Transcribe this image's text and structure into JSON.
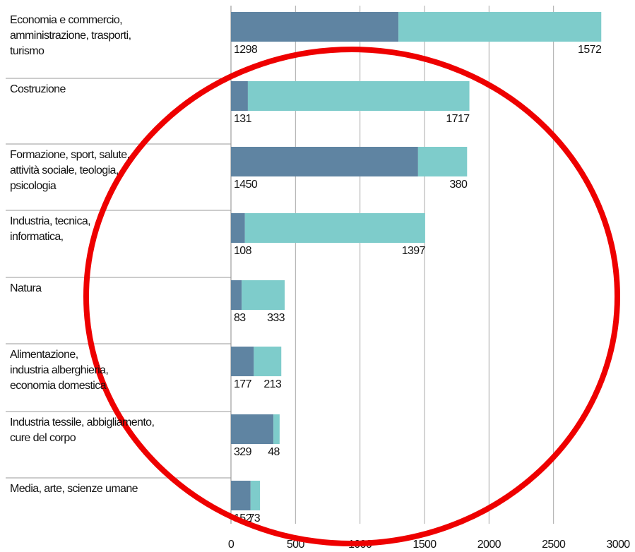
{
  "chart_data": {
    "type": "bar",
    "orientation": "horizontal",
    "stacked": true,
    "categories": [
      "Economia e commercio,\namministrazione, trasporti,\nturismo",
      "Costruzione",
      "Formazione, sport, salute,\nattività sociale, teologia,\npsicologia",
      "Industria, tecnica,\ninformatica,",
      "Natura",
      "Alimentazione,\nindustria alberghieria,\neconomia domestica",
      "Industria tessile, abbigliamento,\ncure del corpo",
      "Media, arte, scienze umane"
    ],
    "series": [
      {
        "color": "#5f84a2",
        "values": [
          1298,
          131,
          1450,
          108,
          83,
          177,
          329,
          152
        ]
      },
      {
        "color": "#7ecccb",
        "values": [
          1572,
          1717,
          380,
          1397,
          333,
          213,
          48,
          73
        ]
      }
    ],
    "xlim": [
      0,
      3000
    ],
    "xticks": [
      0,
      500,
      1000,
      1500,
      2000,
      2500,
      3000
    ],
    "grid": true
  }
}
